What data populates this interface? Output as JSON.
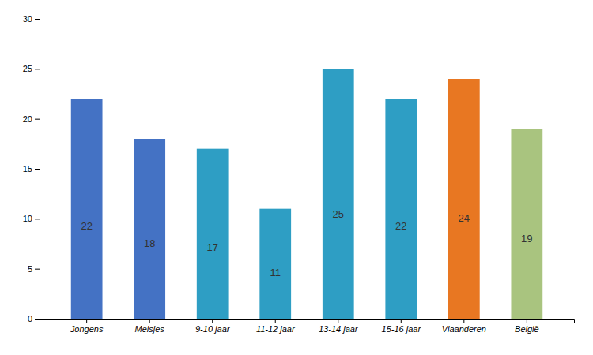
{
  "chart_data": {
    "type": "bar",
    "categories": [
      "Jongens",
      "Meisjes",
      "9-10 jaar",
      "11-12 jaar",
      "13-14 jaar",
      "15-16 jaar",
      "Vlaanderen",
      "België"
    ],
    "values": [
      22,
      18,
      17,
      11,
      25,
      22,
      24,
      19
    ],
    "colors": [
      "#4472C4",
      "#4472C4",
      "#2E9EC4",
      "#2E9EC4",
      "#2E9EC4",
      "#2E9EC4",
      "#E87722",
      "#A9C47F"
    ],
    "ylim": [
      0,
      30
    ],
    "yticks": [
      0,
      5,
      10,
      15,
      20,
      25,
      30
    ],
    "data_labels": true,
    "grid": false
  }
}
